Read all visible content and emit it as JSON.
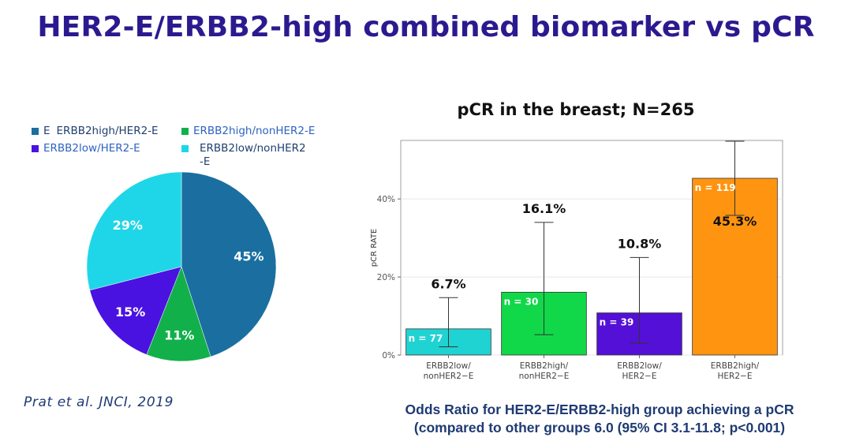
{
  "slide": {
    "title": "HER2-E/ERBB2-high combined biomarker vs pCR",
    "citation": "Prat et al. JNCI, 2019",
    "footnote_line1": "Odds Ratio for HER2-E/ERBB2-high group achieving a pCR",
    "footnote_line2": "(compared to other groups 6.0 (95% CI 3.1-11.8; p<0.001)"
  },
  "legend": {
    "items": [
      {
        "prefix": "E",
        "label": "ERBB2high/HER2-E",
        "color": "#1a6fa0"
      },
      {
        "prefix": "",
        "label": "ERBB2high/nonHER2-E",
        "color": "#12b04a"
      },
      {
        "prefix": "",
        "label": "ERBB2low/HER2-E",
        "color": "#4a12e0"
      },
      {
        "prefix": "",
        "label": "ERBB2low/nonHER2",
        "label2": "-E",
        "color": "#1fd6e8"
      }
    ]
  },
  "chart_data": [
    {
      "type": "pie",
      "slices": [
        {
          "label": "ERBB2high/HER2-E",
          "value": 45,
          "text": "45%",
          "color": "#1a6fa0"
        },
        {
          "label": "ERBB2high/nonHER2-E",
          "value": 11,
          "text": "11%",
          "color": "#12b04a"
        },
        {
          "label": "ERBB2low/HER2-E",
          "value": 15,
          "text": "15%",
          "color": "#4a12e0"
        },
        {
          "label": "ERBB2low/nonHER2-E",
          "value": 29,
          "text": "29%",
          "color": "#1fd6e8"
        }
      ]
    },
    {
      "type": "bar",
      "title": "pCR in the breast; N=265",
      "ylabel": "pCR RATE",
      "ylim": [
        0,
        55
      ],
      "yticks": [
        0,
        20,
        40
      ],
      "ytick_labels": [
        "0%",
        "20%",
        "40%"
      ],
      "categories": [
        "ERBB2low/\nnonHER2−E",
        "ERBB2high/\nnonHER2−E",
        "ERBB2low/\nHER2−E",
        "ERBB2high/\nHER2−E"
      ],
      "values": [
        6.7,
        16.1,
        10.8,
        45.3
      ],
      "value_labels": [
        "6.7%",
        "16.1%",
        "10.8%",
        "45.3%"
      ],
      "n_labels": [
        "n = 77",
        "n = 30",
        "n = 39",
        "n = 119"
      ],
      "error_low": [
        2.1,
        5.2,
        3.0,
        35.8
      ],
      "error_high": [
        14.7,
        34.0,
        25.0,
        54.8
      ],
      "colors": [
        "#1fd3d3",
        "#10d848",
        "#5410d6",
        "#ff9410"
      ]
    }
  ]
}
